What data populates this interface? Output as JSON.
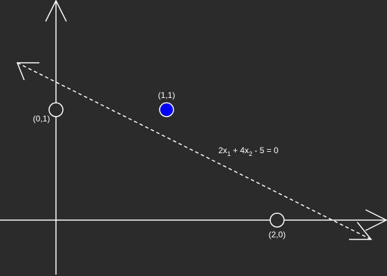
{
  "colors": {
    "background": "#2b2b2b",
    "stroke": "#ffffff",
    "filled_point": "#0000ff"
  },
  "diagram": {
    "points": [
      {
        "label": "(0,1)",
        "x": 0,
        "y": 1,
        "filled": false
      },
      {
        "label": "(1,1)",
        "x": 1,
        "y": 1,
        "filled": true
      },
      {
        "label": "(2,0)",
        "x": 2,
        "y": 0,
        "filled": false
      }
    ],
    "line": {
      "coefficients": [
        2,
        4,
        -5
      ],
      "style": "dashed",
      "equation": {
        "a": "2x",
        "sub1": "1",
        "b": " + 4x",
        "sub2": "2",
        "c": " - 5 = 0"
      }
    }
  }
}
